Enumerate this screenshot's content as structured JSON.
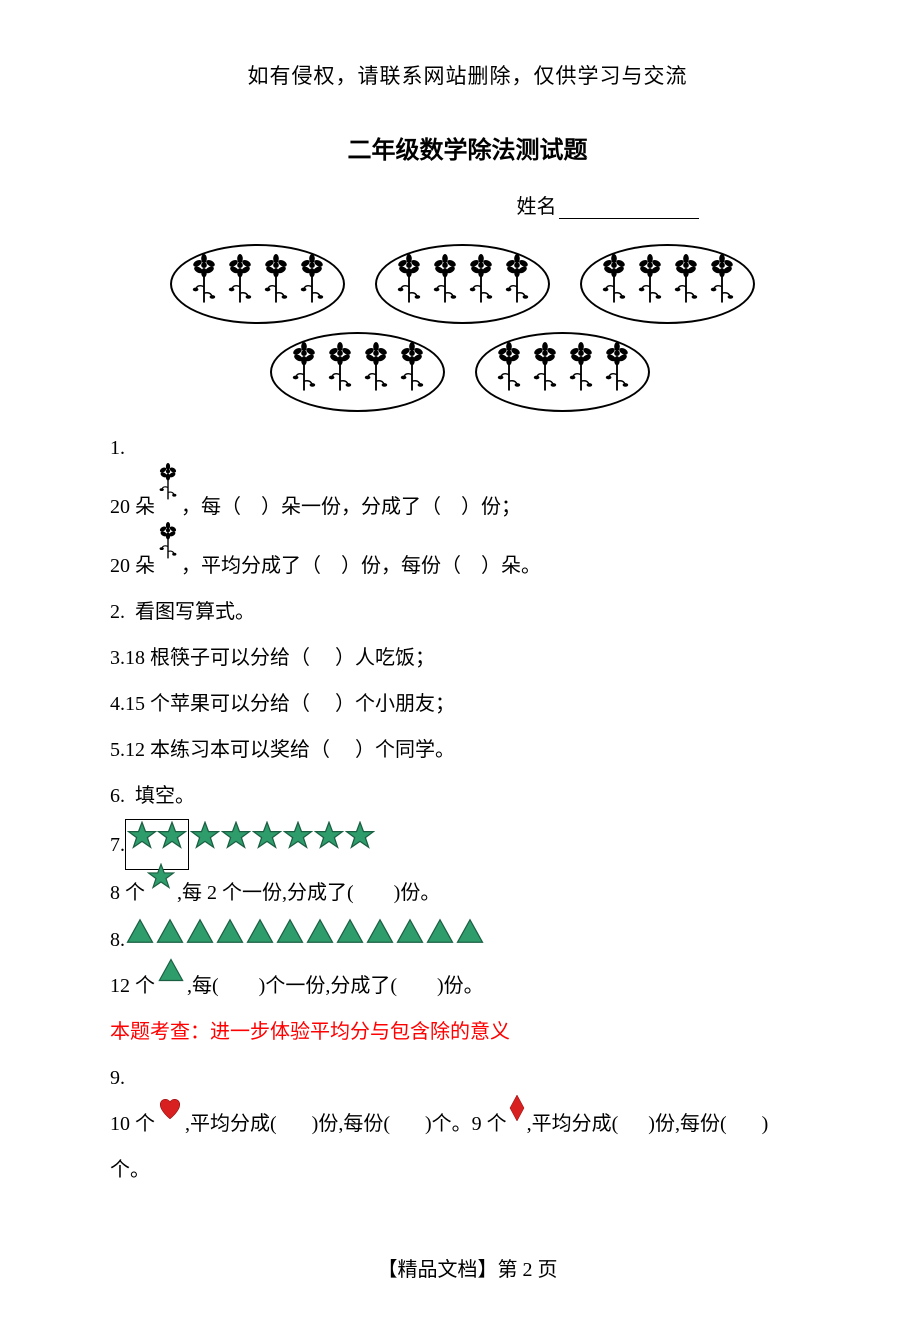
{
  "header_note": "如有侵权，请联系网站删除，仅供学习与交流",
  "title": "二年级数学除法测试题",
  "name_label": "姓名",
  "q1": {
    "num": "1.",
    "line1_a": "20 朵",
    "line1_b": "，每（    ）朵一份，分成了（    ）份；",
    "line2_a": "20 朵",
    "line2_b": "，平均分成了（    ）份，每份（    ）朵。"
  },
  "q2": "2.  看图写算式。",
  "q3": "3.18 根筷子可以分给（     ）人吃饭；",
  "q4": "4.15 个苹果可以分给（     ）个小朋友；",
  "q5": "5.12 本练习本可以奖给（     ）个同学。",
  "q6": "6.  填空。",
  "q7": {
    "num": "7.",
    "line_a": "8 个",
    "line_b": ",每 2 个一份,分成了(        )份。"
  },
  "q8": {
    "num": "8.",
    "line_a": "12 个",
    "line_b": ",每(        )个一份,分成了(        )份。"
  },
  "hint": "本题考查：进一步体验平均分与包含除的意义",
  "q9": {
    "num": "9.",
    "line_a": "10 个",
    "line_b": ",平均分成(       )份,每份(       )个。9 个",
    "line_c": ",平均分成(      )份,每份(       )",
    "line_d": "个。"
  },
  "footer": "【精品文档】第 2 页",
  "colors": {
    "star_fill": "#2e9d6b",
    "star_stroke": "#1a5f42",
    "triangle_fill": "#2e9d6b",
    "triangle_stroke": "#1a5f42",
    "heart_fill": "#d92020",
    "diamond_fill": "#d92020",
    "red_text": "#ff0000"
  },
  "shapes": {
    "flowers_per_oval": 4,
    "ovals_row1": 3,
    "ovals_row2": 2,
    "stars_boxed": 2,
    "stars_free": 6,
    "triangles_q8": 12
  }
}
